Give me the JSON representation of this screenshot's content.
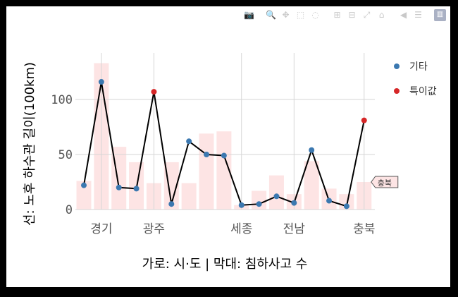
{
  "modebar": {
    "buttons": [
      {
        "name": "camera-icon",
        "glyph": "📷"
      },
      {
        "name": "zoom-icon",
        "glyph": "🔍"
      },
      {
        "name": "pan-icon",
        "glyph": "✥"
      },
      {
        "name": "box-select-icon",
        "glyph": "⬚"
      },
      {
        "name": "lasso-select-icon",
        "glyph": "◌"
      },
      {
        "name": "zoom-in-icon",
        "glyph": "⊞"
      },
      {
        "name": "zoom-out-icon",
        "glyph": "⊟"
      },
      {
        "name": "autoscale-icon",
        "glyph": "⤢"
      },
      {
        "name": "reset-axes-icon",
        "glyph": "⌂"
      },
      {
        "name": "hover-closest-icon",
        "glyph": "◀"
      },
      {
        "name": "hover-compare-icon",
        "glyph": "☰"
      },
      {
        "name": "plotly-logo-icon",
        "glyph": "▥"
      }
    ]
  },
  "chart_data": {
    "type": "bar+line",
    "xlabel": "가로: 시·도 | 막대: 침하사고 수",
    "ylabel": "선: 노후 하수관 길이(100km)",
    "ylim": [
      -5,
      140
    ],
    "yticks": [
      0,
      50,
      100
    ],
    "x_tick_labels": [
      "경기",
      "광주",
      "세종",
      "전남",
      "충북"
    ],
    "x_tick_indices": [
      1,
      4,
      9,
      12,
      16
    ],
    "bars": [
      26,
      133,
      57,
      43,
      24,
      43,
      24,
      69,
      71,
      4,
      17,
      31,
      14,
      44,
      19,
      14,
      25
    ],
    "bar_color": "#fde4e4",
    "line": [
      22,
      116,
      20,
      19,
      107,
      5,
      62,
      50,
      49,
      4,
      5,
      12,
      6,
      54,
      8,
      3,
      81
    ],
    "outlier_indices": [
      4,
      16
    ],
    "series": [
      {
        "name": "기타",
        "color": "#3b78b0"
      },
      {
        "name": "특이값",
        "color": "#d62728"
      }
    ],
    "hover_label": {
      "text": "충북",
      "index": 16
    },
    "grid": true,
    "legend": "top-right"
  }
}
